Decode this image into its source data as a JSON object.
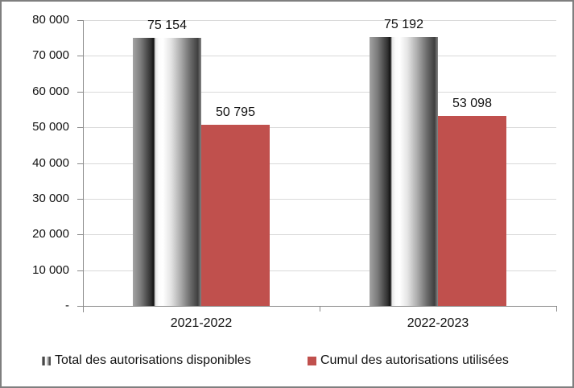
{
  "chart_data": {
    "type": "bar",
    "title": "",
    "xlabel": "",
    "ylabel": "",
    "categories": [
      "2021-2022",
      "2022-2023"
    ],
    "series": [
      {
        "name": "Total des autorisations disponibles",
        "values": [
          75154,
          75192
        ],
        "labels": [
          "75 154",
          "75 192"
        ],
        "fill": "gray-gradient-stripes"
      },
      {
        "name": "Cumul des autorisations utilisées",
        "values": [
          50795,
          53098
        ],
        "labels": [
          "50 795",
          "53 098"
        ],
        "fill": "#C0504D"
      }
    ],
    "ylim": [
      0,
      80000
    ],
    "ytick_interval": 10000,
    "ytick_labels_bottom_to_top": [
      "-",
      "10 000",
      "20 000",
      "30 000",
      "40 000",
      "50 000",
      "60 000",
      "70 000",
      "80 000"
    ],
    "grid": true,
    "legend_position": "bottom"
  },
  "legend": {
    "items": [
      {
        "icon": "striped-gray-swatch",
        "label": "Total des autorisations disponibles"
      },
      {
        "icon": "red-swatch",
        "label": "Cumul des autorisations utilisées"
      }
    ]
  },
  "colors": {
    "red_series": "#C0504D",
    "gridline": "#D9D9D9",
    "axis": "#898989",
    "frame_border": "#7F7F7F",
    "text": "#111111"
  }
}
